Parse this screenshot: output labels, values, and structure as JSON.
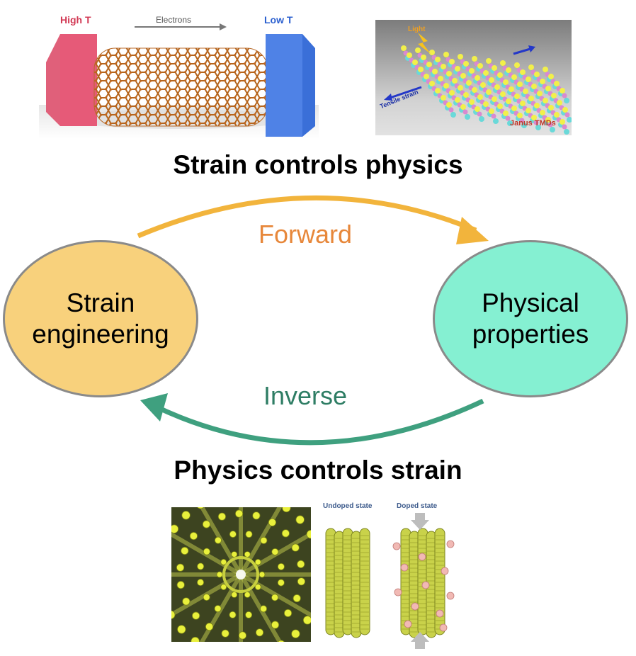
{
  "top_heading": "Strain controls physics",
  "bottom_heading": "Physics controls strain",
  "nodes": {
    "left": {
      "line1": "Strain",
      "line2": "engineering",
      "color": "#F8D17C"
    },
    "right": {
      "line1": "Physical",
      "line2": "properties",
      "color": "#85F0D2"
    }
  },
  "arrows": {
    "forward": {
      "label": "Forward",
      "color": "#F2B43C",
      "label_color": "#E7873A"
    },
    "inverse": {
      "label": "Inverse",
      "color": "#3FA07F",
      "label_color": "#2E7D64"
    }
  },
  "image1": {
    "high_t": "High T",
    "electrons": "Electrons",
    "low_t": "Low T"
  },
  "image2": {
    "light": "Light",
    "tensile": "Tensile strain",
    "janus": "Janus TMDs"
  },
  "image4": {
    "undoped": "Undoped state",
    "doped": "Doped state"
  }
}
